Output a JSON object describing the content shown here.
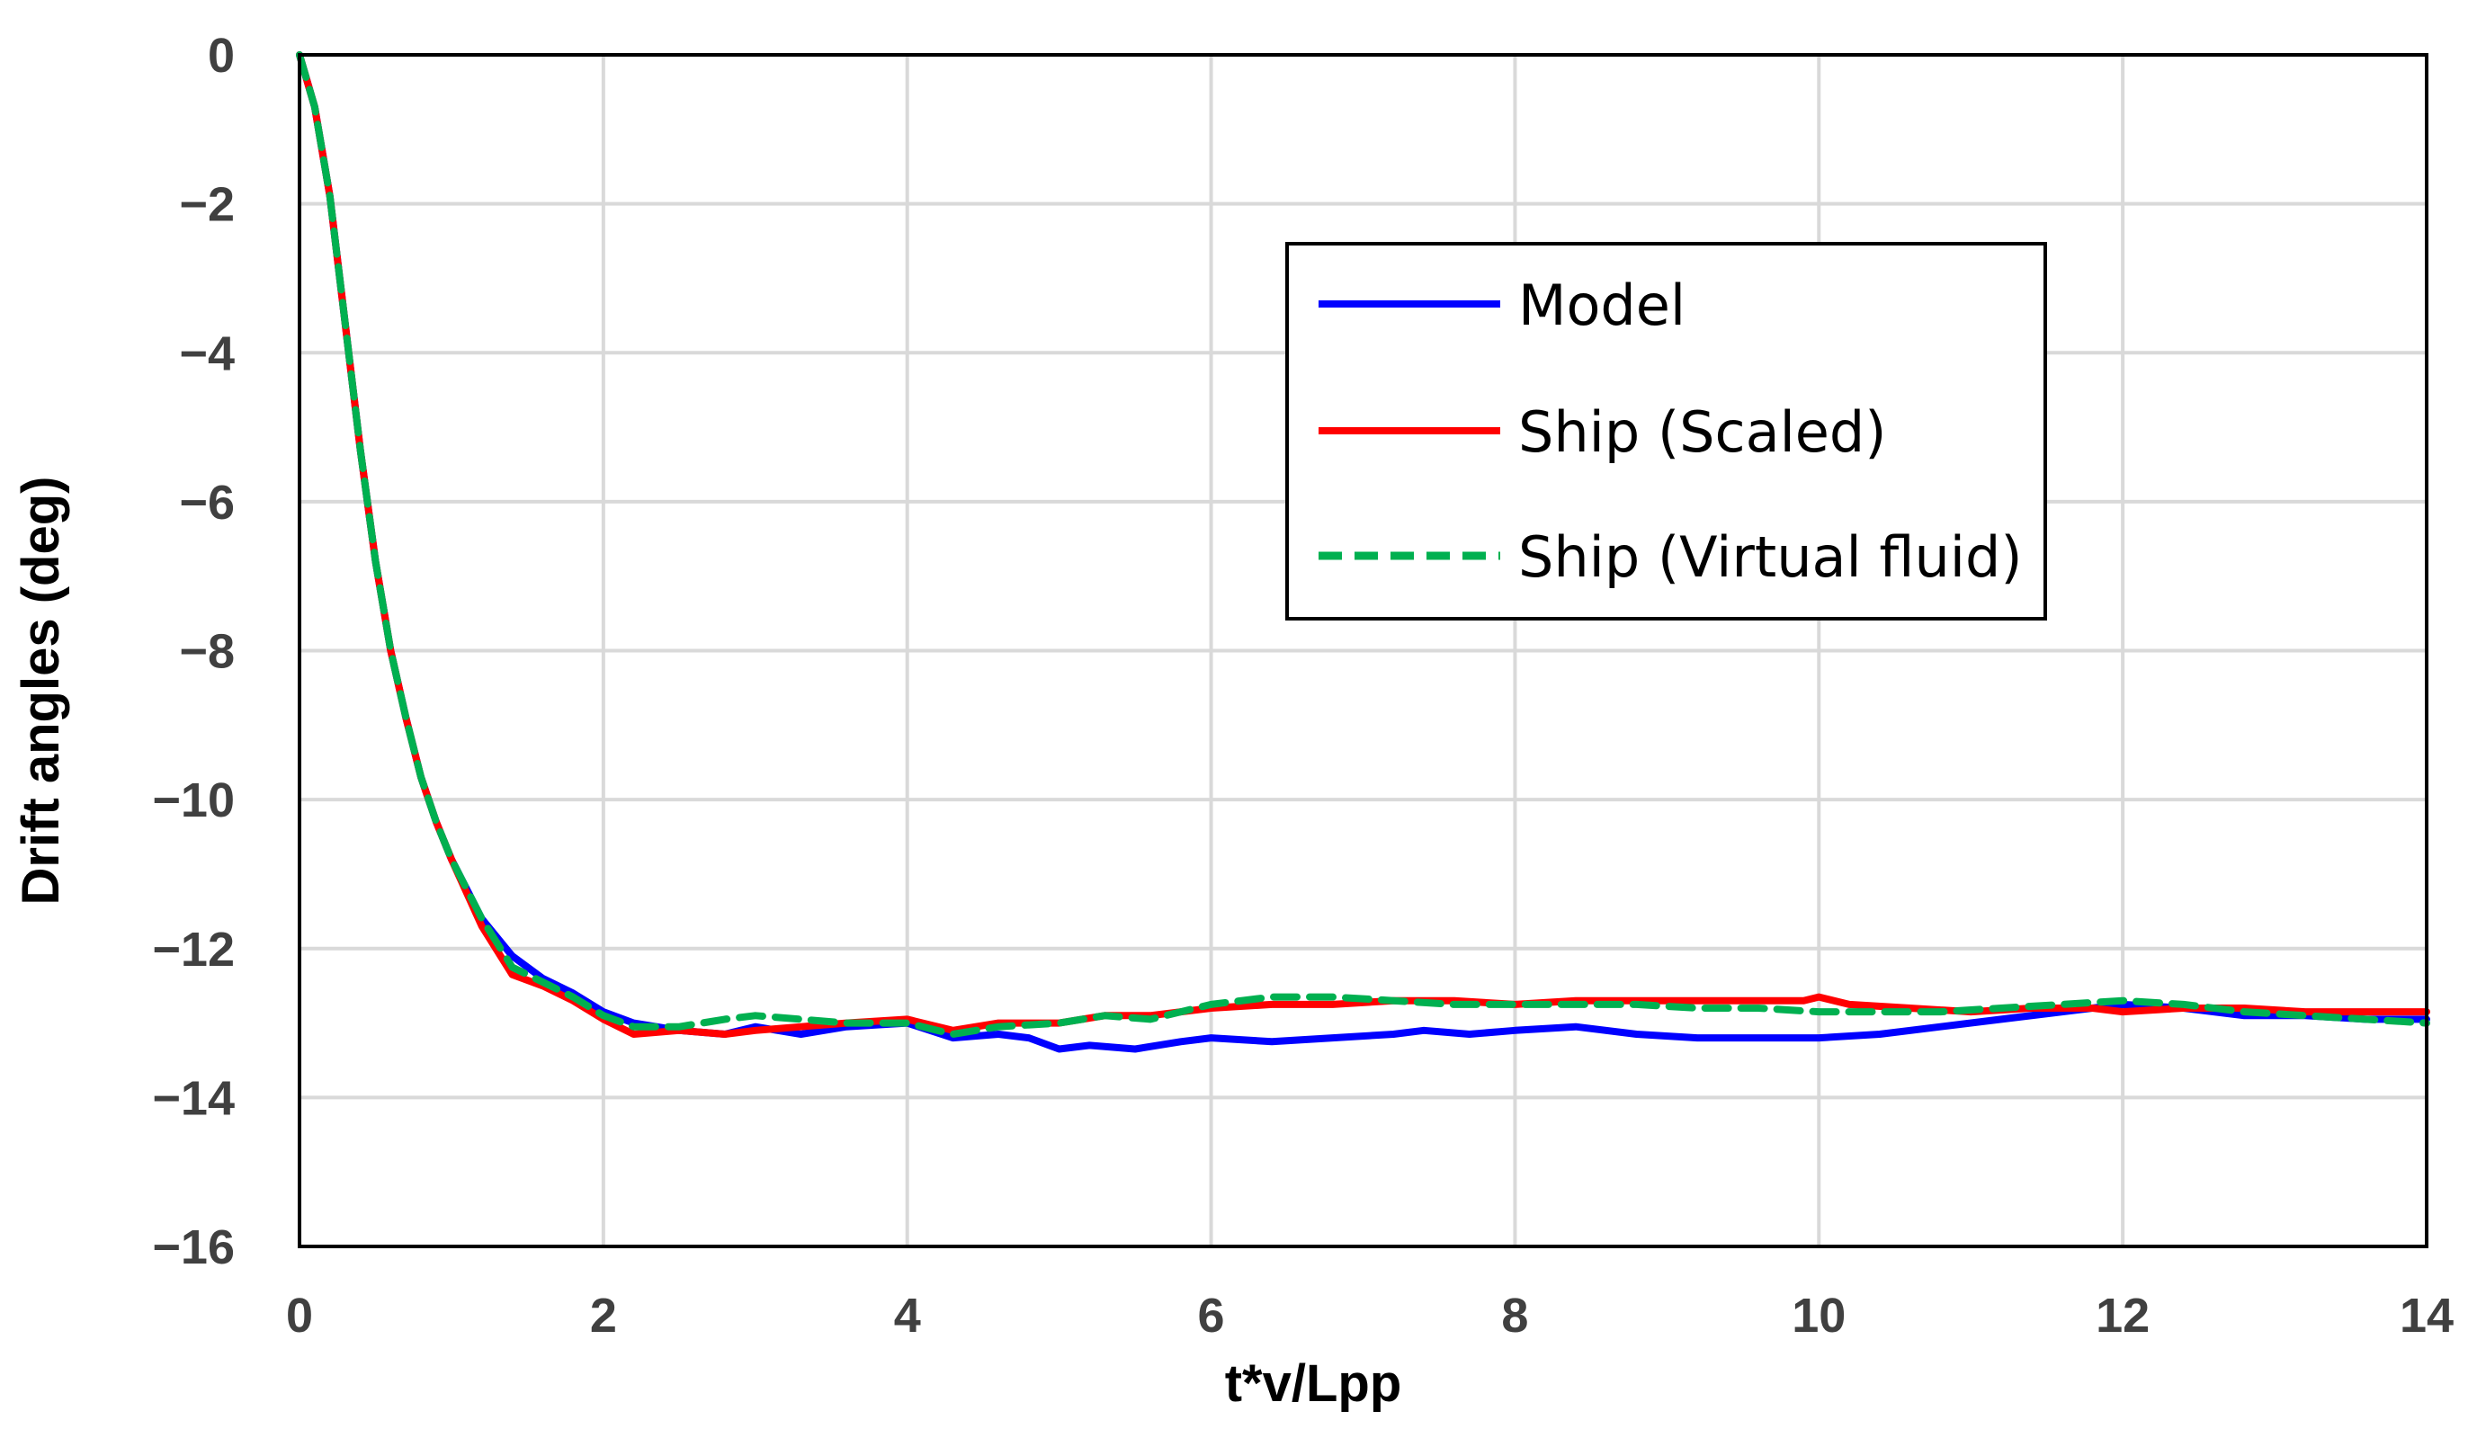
{
  "chart_data": {
    "type": "line",
    "title": "",
    "xlabel": "t*v/Lpp",
    "ylabel": "Drift angles (deg)",
    "xlim": [
      0,
      14
    ],
    "ylim": [
      -16,
      0
    ],
    "xticks": [
      0,
      2,
      4,
      6,
      8,
      10,
      12,
      14
    ],
    "yticks": [
      0,
      -2,
      -4,
      -6,
      -8,
      -10,
      -12,
      -14,
      -16
    ],
    "xtick_labels": [
      "0",
      "2",
      "4",
      "6",
      "8",
      "10",
      "12",
      "14"
    ],
    "ytick_labels": [
      "0",
      "−2",
      "−4",
      "−6",
      "−8",
      "−10",
      "−12",
      "−14",
      "−16"
    ],
    "grid": true,
    "legend_position": "top-right",
    "series": [
      {
        "name": "Model",
        "color": "#0000ff",
        "dash": "solid",
        "x": [
          0,
          0.1,
          0.2,
          0.3,
          0.4,
          0.5,
          0.6,
          0.7,
          0.8,
          0.9,
          1.0,
          1.2,
          1.4,
          1.6,
          1.8,
          2.0,
          2.2,
          2.5,
          2.8,
          3.0,
          3.3,
          3.6,
          4.0,
          4.3,
          4.6,
          4.8,
          5.0,
          5.2,
          5.5,
          5.8,
          6.0,
          6.4,
          6.8,
          7.2,
          7.4,
          7.7,
          8.0,
          8.4,
          8.8,
          9.2,
          9.6,
          10.0,
          10.4,
          10.8,
          11.2,
          11.6,
          12.0,
          12.4,
          12.8,
          13.2,
          13.6,
          14.0
        ],
        "values": [
          0,
          -0.7,
          -1.9,
          -3.6,
          -5.3,
          -6.8,
          -8.0,
          -8.9,
          -9.7,
          -10.3,
          -10.8,
          -11.6,
          -12.1,
          -12.4,
          -12.6,
          -12.85,
          -13.0,
          -13.1,
          -13.15,
          -13.05,
          -13.15,
          -13.05,
          -13.0,
          -13.2,
          -13.15,
          -13.2,
          -13.35,
          -13.3,
          -13.35,
          -13.25,
          -13.2,
          -13.25,
          -13.2,
          -13.15,
          -13.1,
          -13.15,
          -13.1,
          -13.05,
          -13.15,
          -13.2,
          -13.2,
          -13.2,
          -13.15,
          -13.05,
          -12.95,
          -12.85,
          -12.75,
          -12.8,
          -12.9,
          -12.9,
          -12.95,
          -12.95
        ]
      },
      {
        "name": "Ship (Scaled)",
        "color": "#ff0000",
        "dash": "solid",
        "x": [
          0,
          0.1,
          0.2,
          0.3,
          0.4,
          0.5,
          0.6,
          0.7,
          0.8,
          0.9,
          1.0,
          1.2,
          1.4,
          1.6,
          1.8,
          2.0,
          2.2,
          2.5,
          2.8,
          3.0,
          3.3,
          3.6,
          4.0,
          4.3,
          4.6,
          5.0,
          5.3,
          5.6,
          6.0,
          6.4,
          6.8,
          7.2,
          7.6,
          8.0,
          8.4,
          8.8,
          9.2,
          9.6,
          9.9,
          10.0,
          10.2,
          10.6,
          11.0,
          11.4,
          11.8,
          12.0,
          12.4,
          12.8,
          13.2,
          13.6,
          14.0
        ],
        "values": [
          0,
          -0.7,
          -1.9,
          -3.6,
          -5.3,
          -6.8,
          -8.0,
          -8.9,
          -9.7,
          -10.3,
          -10.8,
          -11.7,
          -12.35,
          -12.5,
          -12.7,
          -12.95,
          -13.15,
          -13.1,
          -13.15,
          -13.1,
          -13.05,
          -13.0,
          -12.95,
          -13.1,
          -13.0,
          -13.0,
          -12.9,
          -12.9,
          -12.8,
          -12.75,
          -12.75,
          -12.7,
          -12.7,
          -12.75,
          -12.7,
          -12.7,
          -12.7,
          -12.7,
          -12.7,
          -12.65,
          -12.75,
          -12.8,
          -12.85,
          -12.8,
          -12.8,
          -12.85,
          -12.8,
          -12.8,
          -12.85,
          -12.85,
          -12.85
        ]
      },
      {
        "name": "Ship (Virtual fluid)",
        "color": "#00b050",
        "dash": "dashed",
        "x": [
          0,
          0.1,
          0.2,
          0.3,
          0.4,
          0.5,
          0.6,
          0.7,
          0.8,
          0.9,
          1.0,
          1.2,
          1.4,
          1.6,
          1.8,
          2.0,
          2.2,
          2.5,
          2.8,
          3.0,
          3.3,
          3.6,
          4.0,
          4.3,
          4.6,
          5.0,
          5.3,
          5.6,
          6.0,
          6.4,
          6.8,
          7.2,
          7.6,
          8.0,
          8.4,
          8.8,
          9.2,
          9.6,
          10.0,
          10.4,
          10.8,
          11.2,
          11.6,
          12.0,
          12.4,
          12.8,
          13.2,
          13.6,
          14.0
        ],
        "values": [
          0,
          -0.7,
          -1.9,
          -3.6,
          -5.3,
          -6.8,
          -8.0,
          -8.9,
          -9.7,
          -10.3,
          -10.8,
          -11.6,
          -12.25,
          -12.45,
          -12.65,
          -12.9,
          -13.05,
          -13.05,
          -12.95,
          -12.9,
          -12.95,
          -13.0,
          -13.0,
          -13.15,
          -13.05,
          -13.0,
          -12.9,
          -12.95,
          -12.75,
          -12.65,
          -12.65,
          -12.7,
          -12.75,
          -12.75,
          -12.75,
          -12.75,
          -12.8,
          -12.8,
          -12.85,
          -12.85,
          -12.85,
          -12.8,
          -12.75,
          -12.7,
          -12.75,
          -12.85,
          -12.9,
          -12.95,
          -13.0
        ]
      }
    ]
  }
}
